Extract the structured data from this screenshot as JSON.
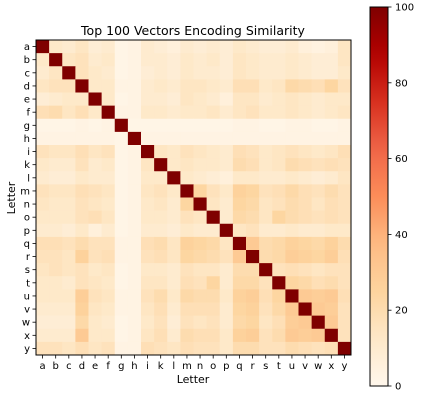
{
  "chart_data": {
    "type": "heatmap",
    "title": "Top 100 Vectors Encoding Similarity",
    "xlabel": "Letter",
    "ylabel": "Letter",
    "labels": [
      "a",
      "b",
      "c",
      "d",
      "e",
      "f",
      "g",
      "h",
      "i",
      "k",
      "l",
      "m",
      "n",
      "o",
      "p",
      "q",
      "r",
      "s",
      "t",
      "u",
      "v",
      "w",
      "x",
      "y"
    ],
    "values": [
      [
        100,
        12,
        10,
        14,
        8,
        10,
        2,
        3,
        10,
        8,
        6,
        10,
        8,
        10,
        8,
        12,
        10,
        8,
        8,
        10,
        6,
        4,
        6,
        14
      ],
      [
        12,
        100,
        14,
        16,
        10,
        12,
        2,
        3,
        10,
        10,
        8,
        12,
        10,
        12,
        8,
        14,
        12,
        10,
        10,
        12,
        10,
        8,
        8,
        14
      ],
      [
        10,
        14,
        100,
        16,
        12,
        10,
        2,
        3,
        8,
        10,
        8,
        12,
        10,
        10,
        8,
        14,
        12,
        10,
        10,
        12,
        10,
        8,
        8,
        12
      ],
      [
        14,
        16,
        16,
        100,
        12,
        12,
        3,
        3,
        10,
        12,
        10,
        14,
        14,
        12,
        10,
        18,
        18,
        12,
        14,
        22,
        20,
        18,
        24,
        16
      ],
      [
        8,
        10,
        12,
        12,
        100,
        12,
        2,
        3,
        10,
        10,
        8,
        14,
        12,
        10,
        6,
        14,
        14,
        10,
        12,
        14,
        12,
        10,
        12,
        12
      ],
      [
        18,
        20,
        14,
        18,
        12,
        100,
        3,
        3,
        12,
        12,
        10,
        12,
        12,
        14,
        10,
        14,
        16,
        12,
        12,
        14,
        12,
        10,
        12,
        14
      ],
      [
        2,
        2,
        2,
        3,
        2,
        3,
        100,
        2,
        2,
        2,
        2,
        2,
        2,
        2,
        2,
        3,
        3,
        2,
        2,
        3,
        3,
        2,
        2,
        3
      ],
      [
        3,
        3,
        3,
        3,
        3,
        3,
        2,
        100,
        3,
        3,
        3,
        3,
        3,
        3,
        3,
        3,
        3,
        3,
        3,
        3,
        3,
        3,
        3,
        3
      ],
      [
        16,
        14,
        14,
        18,
        14,
        16,
        2,
        3,
        100,
        14,
        12,
        16,
        14,
        12,
        10,
        18,
        16,
        12,
        14,
        16,
        14,
        12,
        14,
        18
      ],
      [
        12,
        10,
        10,
        16,
        10,
        12,
        2,
        3,
        14,
        100,
        12,
        14,
        12,
        12,
        10,
        20,
        18,
        12,
        14,
        20,
        18,
        16,
        18,
        16
      ],
      [
        10,
        8,
        8,
        12,
        10,
        10,
        2,
        3,
        12,
        12,
        100,
        12,
        10,
        8,
        6,
        12,
        12,
        10,
        10,
        12,
        10,
        8,
        10,
        14
      ],
      [
        16,
        14,
        14,
        18,
        16,
        14,
        2,
        3,
        14,
        16,
        12,
        100,
        24,
        16,
        12,
        26,
        24,
        16,
        18,
        22,
        18,
        16,
        20,
        16
      ],
      [
        14,
        12,
        12,
        16,
        14,
        12,
        2,
        3,
        12,
        14,
        10,
        24,
        100,
        14,
        10,
        24,
        22,
        14,
        16,
        20,
        18,
        14,
        18,
        16
      ],
      [
        12,
        12,
        12,
        16,
        18,
        14,
        2,
        3,
        12,
        12,
        10,
        16,
        14,
        100,
        10,
        22,
        20,
        14,
        24,
        20,
        18,
        16,
        18,
        16
      ],
      [
        10,
        10,
        8,
        12,
        6,
        10,
        2,
        3,
        10,
        10,
        8,
        12,
        10,
        10,
        100,
        14,
        16,
        10,
        10,
        12,
        10,
        10,
        12,
        12
      ],
      [
        18,
        18,
        16,
        20,
        16,
        16,
        3,
        3,
        18,
        20,
        14,
        26,
        24,
        22,
        14,
        100,
        30,
        20,
        22,
        26,
        24,
        22,
        26,
        20
      ],
      [
        16,
        16,
        14,
        26,
        16,
        18,
        3,
        3,
        16,
        18,
        14,
        24,
        22,
        20,
        16,
        30,
        100,
        20,
        22,
        28,
        26,
        24,
        28,
        18
      ],
      [
        14,
        16,
        14,
        16,
        12,
        14,
        2,
        3,
        12,
        12,
        10,
        16,
        14,
        14,
        10,
        20,
        20,
        100,
        16,
        18,
        16,
        14,
        16,
        16
      ],
      [
        12,
        12,
        10,
        16,
        14,
        12,
        2,
        3,
        14,
        14,
        10,
        18,
        16,
        24,
        10,
        22,
        22,
        16,
        100,
        24,
        22,
        18,
        20,
        16
      ],
      [
        12,
        12,
        12,
        28,
        16,
        14,
        3,
        3,
        16,
        20,
        12,
        22,
        20,
        20,
        12,
        26,
        28,
        18,
        24,
        100,
        30,
        28,
        30,
        18
      ],
      [
        10,
        10,
        10,
        26,
        14,
        12,
        3,
        3,
        14,
        18,
        10,
        18,
        18,
        18,
        10,
        24,
        26,
        16,
        22,
        30,
        100,
        30,
        28,
        16
      ],
      [
        8,
        8,
        8,
        22,
        12,
        10,
        2,
        3,
        12,
        16,
        8,
        16,
        14,
        16,
        10,
        22,
        24,
        14,
        18,
        28,
        30,
        100,
        30,
        16
      ],
      [
        10,
        10,
        10,
        30,
        12,
        12,
        2,
        3,
        14,
        18,
        10,
        20,
        18,
        18,
        12,
        26,
        28,
        16,
        20,
        30,
        28,
        30,
        100,
        16
      ],
      [
        16,
        16,
        14,
        18,
        14,
        16,
        3,
        3,
        18,
        16,
        14,
        18,
        16,
        16,
        12,
        20,
        20,
        16,
        16,
        20,
        18,
        16,
        18,
        100
      ]
    ],
    "colorbar": {
      "min": 0,
      "max": 100,
      "ticks": [
        0,
        20,
        40,
        60,
        80,
        100
      ],
      "colormap": "OrRd"
    },
    "grid": false
  }
}
